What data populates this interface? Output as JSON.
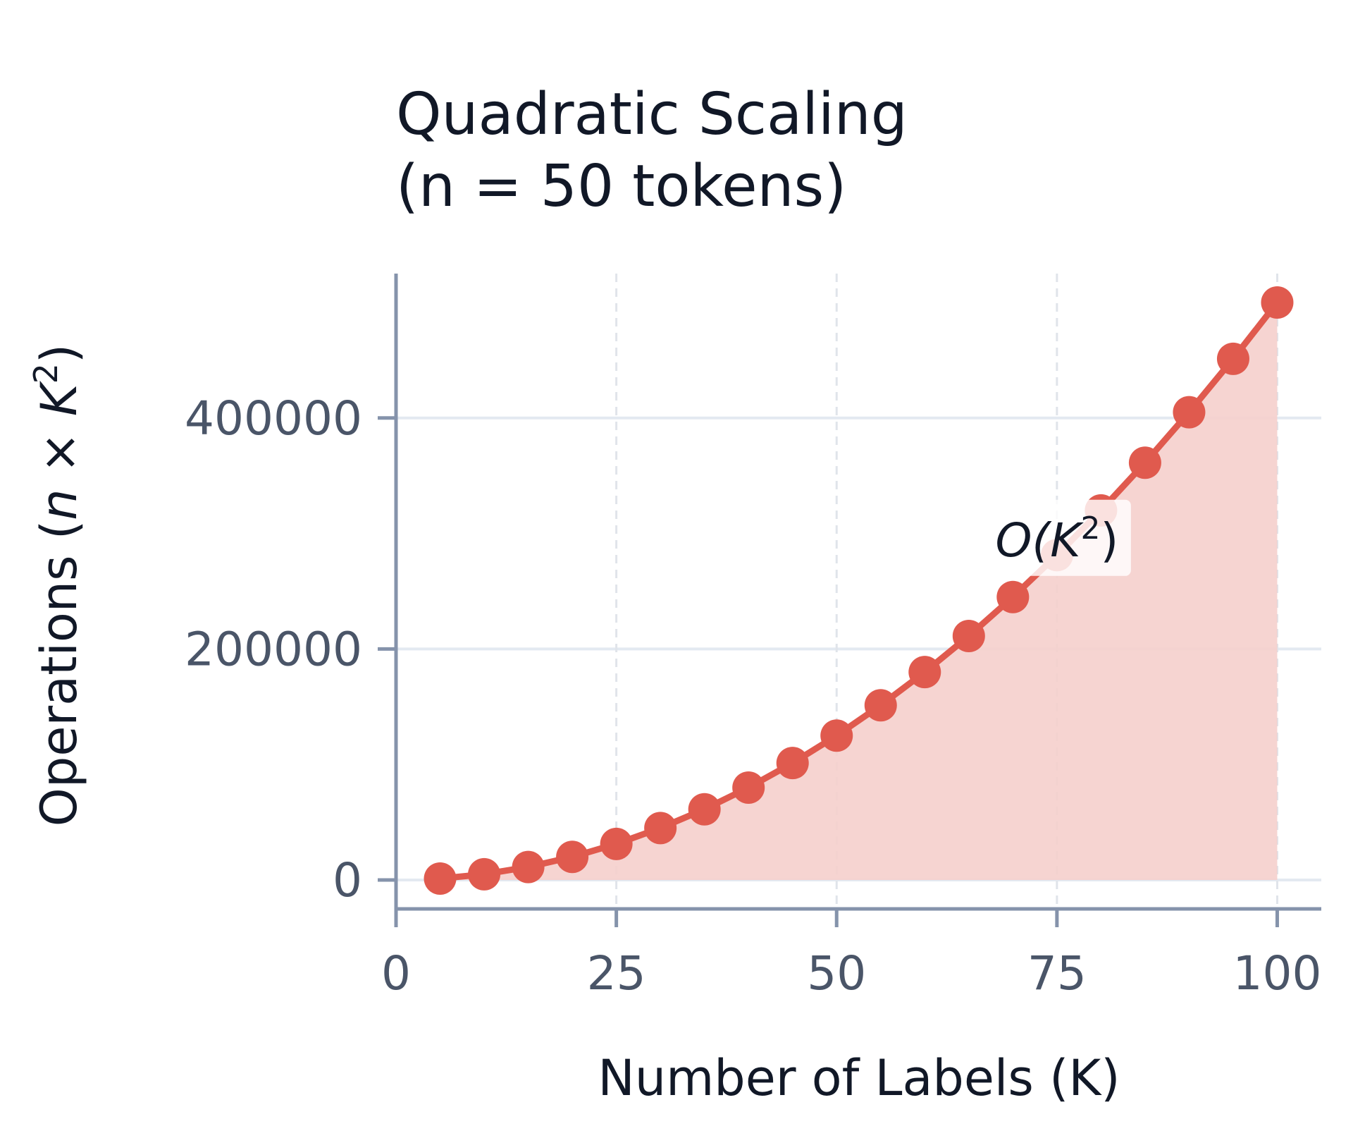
{
  "chart_data": {
    "type": "line",
    "title_line1": "Quadratic Scaling",
    "title_line2": "(n = 50 tokens)",
    "xlabel": "Number of Labels (K)",
    "ylabel": "Operations (n × K²)",
    "ylabel_parts": {
      "prefix": "Operations (",
      "n": "n",
      "times": " × ",
      "k": "K",
      "sup": "2",
      "suffix": ")"
    },
    "xlim": [
      0,
      105
    ],
    "ylim": [
      -25000,
      525000
    ],
    "x_ticks": [
      0,
      25,
      50,
      75,
      100
    ],
    "x_tick_labels": [
      "0",
      "25",
      "50",
      "75",
      "100"
    ],
    "y_ticks": [
      0,
      200000,
      400000
    ],
    "y_tick_labels": [
      "0",
      "200000",
      "400000"
    ],
    "grid": {
      "x": "dashed",
      "y": "solid"
    },
    "series": [
      {
        "color": "#e05a4e",
        "fill_color": "#f5cfcc",
        "x": [
          5,
          10,
          15,
          20,
          25,
          30,
          35,
          40,
          45,
          50,
          55,
          60,
          65,
          70,
          75,
          80,
          85,
          90,
          95,
          100
        ],
        "y": [
          1250,
          5000,
          11250,
          20000,
          31250,
          45000,
          61250,
          80000,
          101250,
          125000,
          151250,
          180000,
          211250,
          245000,
          281250,
          320000,
          361250,
          405000,
          451250,
          500000
        ]
      }
    ],
    "annotation": {
      "text_prefix": "O(",
      "k": "K",
      "sup": "2",
      "text_suffix": ")",
      "x": 75,
      "y": 295000
    }
  }
}
